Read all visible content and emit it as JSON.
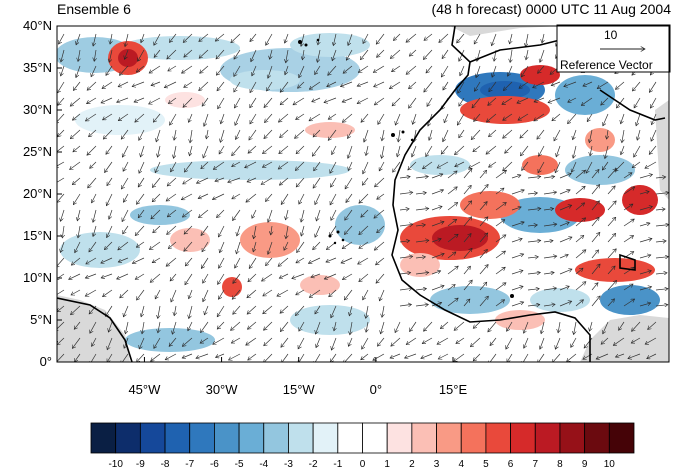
{
  "header": {
    "left_title": "Ensemble 6",
    "right_title": "(48 h forecast) 0000 UTC 11 Aug 2004"
  },
  "reference_vector": {
    "magnitude": "10",
    "label": "Reference Vector"
  },
  "axes": {
    "lat_labels": [
      "40°N",
      "35°N",
      "30°N",
      "25°N",
      "20°N",
      "15°N",
      "10°N",
      "5°N",
      "0°"
    ],
    "lon_labels": [
      "45°W",
      "30°W",
      "15°W",
      "0°",
      "15°E"
    ],
    "lat_values": [
      40,
      35,
      30,
      25,
      20,
      15,
      10,
      5,
      0
    ],
    "lon_values": [
      -45,
      -30,
      -15,
      0,
      15
    ],
    "lon_range": [
      -62,
      57
    ],
    "lat_range": [
      0,
      40
    ]
  },
  "colorbar": {
    "labels": [
      "-10",
      "-9",
      "-8",
      "-7",
      "-6",
      "-5",
      "-4",
      "-3",
      "-2",
      "-1",
      "0",
      "1",
      "2",
      "3",
      "4",
      "5",
      "6",
      "7",
      "8",
      "9",
      "10"
    ],
    "colors": [
      "#0a1f44",
      "#0d2d6b",
      "#15489a",
      "#1f62b0",
      "#2f78bd",
      "#4a93c8",
      "#6aaed6",
      "#93c6df",
      "#bfe0ec",
      "#e2f2f8",
      "#ffffff",
      "#ffffff",
      "#fde2e1",
      "#fbbfb5",
      "#f99a85",
      "#f4725c",
      "#e9493b",
      "#d62a2a",
      "#bb1a23",
      "#961118",
      "#6b0a0f",
      "#450307"
    ]
  }
}
